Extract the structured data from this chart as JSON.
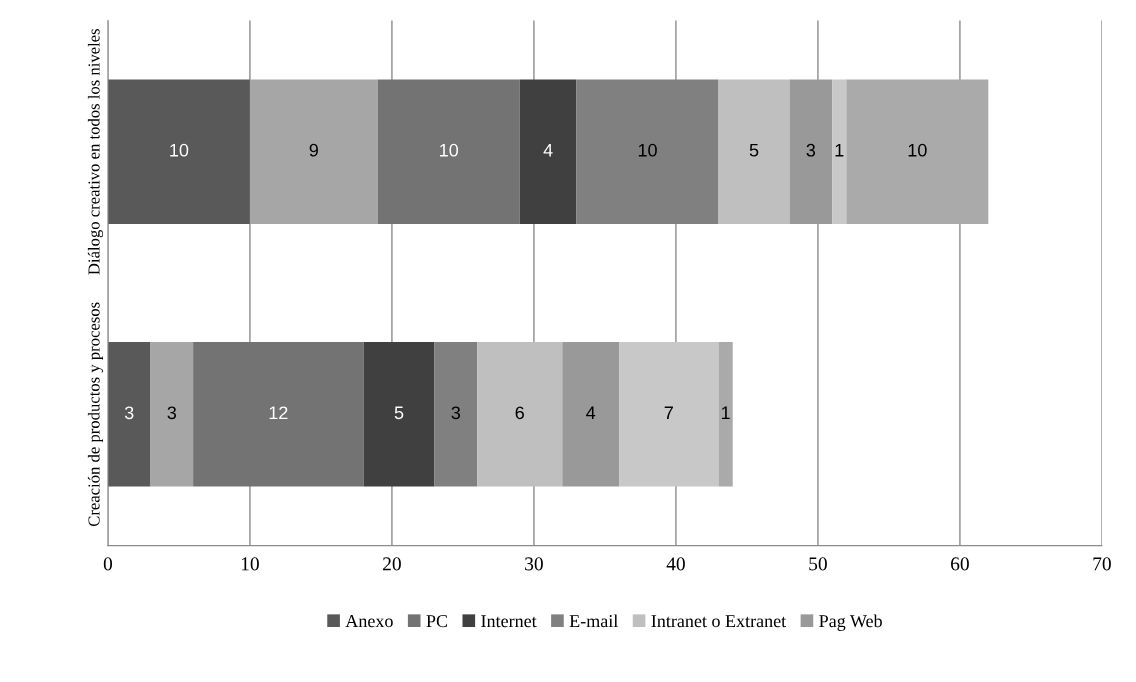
{
  "chart_data": {
    "type": "bar",
    "orientation": "horizontal",
    "stacked": true,
    "categories": [
      "Diálogo creativo en todos los niveles",
      "Creación de productos y procesos"
    ],
    "series": [
      {
        "name": "Anexo",
        "color": "#595959",
        "values": [
          10,
          3
        ]
      },
      {
        "color": "#a6a6a6",
        "values": [
          9,
          3
        ]
      },
      {
        "name": "PC",
        "color": "#737373",
        "values": [
          10,
          12
        ]
      },
      {
        "name": "Internet",
        "color": "#404040",
        "values": [
          4,
          5
        ]
      },
      {
        "name": "E-mail",
        "color": "#808080",
        "values": [
          10,
          3
        ]
      },
      {
        "name": "Intranet o Extranet",
        "color": "#bfbfbf",
        "values": [
          5,
          6
        ]
      },
      {
        "name": "Pag Web",
        "color": "#999999",
        "values": [
          3,
          4
        ]
      },
      {
        "color": "#c8c8c8",
        "values": [
          1,
          7
        ]
      },
      {
        "color": "#aaaaaa",
        "values": [
          10,
          1
        ]
      }
    ],
    "xlim": [
      0,
      70
    ],
    "xticks": [
      0,
      10,
      20,
      30,
      40,
      50,
      60,
      70
    ],
    "grid": "x",
    "legend": "bottom",
    "data_labels": true
  }
}
